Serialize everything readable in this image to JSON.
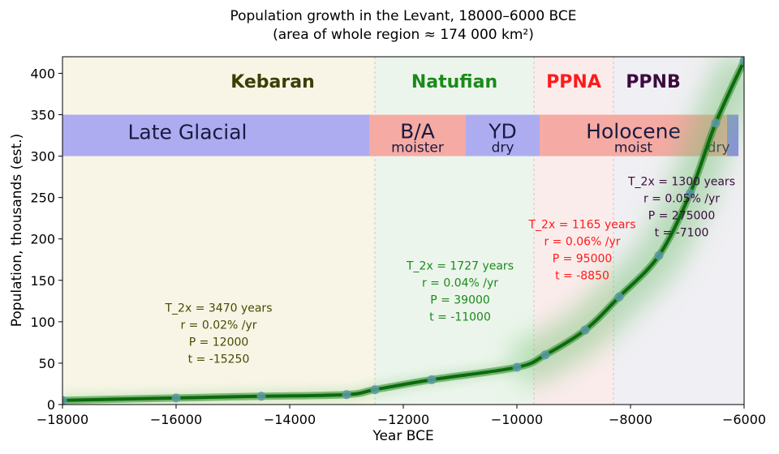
{
  "chart_data": {
    "type": "line",
    "title": "Population growth in the Levant, 18000–6000 BCE",
    "subtitle": "(area of whole region ≈ 174 000 km²)",
    "xlabel": "Year BCE",
    "ylabel": "Population, thousands (est.)",
    "xlim": [
      -18000,
      -6000
    ],
    "ylim": [
      0,
      420
    ],
    "xticks": [
      -18000,
      -16000,
      -14000,
      -12000,
      -10000,
      -8000,
      -6000
    ],
    "xtick_labels": [
      "−18000",
      "−16000",
      "−14000",
      "−12000",
      "−10000",
      "−8000",
      "−6000"
    ],
    "yticks": [
      0,
      50,
      100,
      150,
      200,
      250,
      300,
      350,
      400
    ],
    "ytick_labels": [
      "0",
      "50",
      "100",
      "150",
      "200",
      "250",
      "300",
      "350",
      "400"
    ],
    "grid": false,
    "periods": [
      {
        "name": "Kebaran",
        "start": -18000,
        "end": -12500,
        "color": "#3d3d00",
        "bg": "#f8f5e6"
      },
      {
        "name": "Natufian",
        "start": -12500,
        "end": -9700,
        "color": "#1a8a1a",
        "bg": "#ecf5ec"
      },
      {
        "name": "PPNA",
        "start": -9700,
        "end": -8300,
        "color": "#ff1a1a",
        "bg": "#fbecec"
      },
      {
        "name": "PPNB",
        "start": -8300,
        "end": -6000,
        "color": "#3d0a40",
        "bg": "#f0eff3"
      }
    ],
    "climate": [
      {
        "label": "Late Glacial",
        "sub": "",
        "start": -18000,
        "end": -12600,
        "color": "#aeacf0"
      },
      {
        "label": "B/A",
        "sub": "moister",
        "start": -12600,
        "end": -10900,
        "color": "#f5aaa3"
      },
      {
        "label": "YD",
        "sub": "dry",
        "start": -10900,
        "end": -9600,
        "color": "#aeacf0"
      },
      {
        "label": "Holocene",
        "sub": "moist",
        "start": -9600,
        "end": -6300,
        "color": "#f5aaa3"
      },
      {
        "label": "",
        "sub": "dry",
        "start": -6300,
        "end": -6100,
        "color": "#8e8ce8"
      }
    ],
    "series": [
      {
        "x": [
          -18000,
          -16000,
          -14500,
          -13000,
          -12500,
          -11500,
          -10000,
          -9500,
          -8800,
          -8200,
          -7500,
          -6950,
          -6500,
          -6000
        ],
        "y": [
          5,
          8,
          10,
          12,
          18,
          30,
          45,
          60,
          90,
          130,
          180,
          255,
          340,
          415
        ],
        "line_color": "#0b6b0b"
      }
    ],
    "annotations": [
      {
        "lines": [
          "T_2x = 3470 years",
          "r = 0.02% /yr",
          "P = 12000",
          "t = -15250"
        ],
        "x": -15250,
        "y": 112,
        "color": "#4a4a00"
      },
      {
        "lines": [
          "T_2x = 1727 years",
          "r = 0.04% /yr",
          "P = 39000",
          "t = -11000"
        ],
        "x": -11000,
        "y": 163,
        "color": "#1a8a1a"
      },
      {
        "lines": [
          "T_2x = 1165 years",
          "r = 0.06% /yr",
          "P = 95000",
          "t = -8850"
        ],
        "x": -8850,
        "y": 213,
        "color": "#ff1a1a"
      },
      {
        "lines": [
          "T_2x = 1300 years",
          "r = 0.05% /yr",
          "P = 275000",
          "t = -7100"
        ],
        "x": -7100,
        "y": 265,
        "color": "#3d0a40"
      }
    ]
  }
}
